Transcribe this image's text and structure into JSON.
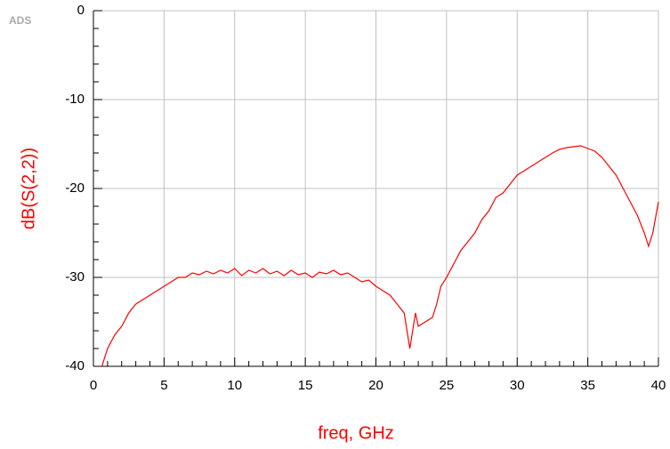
{
  "chart_data": {
    "type": "line",
    "watermark": "ADS",
    "xlabel": "freq, GHz",
    "ylabel": "dB(S(2,2))",
    "x": [
      0.6,
      1,
      1.5,
      2,
      2.5,
      3,
      3.5,
      4,
      4.5,
      5,
      5.5,
      6,
      6.5,
      7,
      7.5,
      8,
      8.5,
      9,
      9.5,
      10,
      10.5,
      11,
      11.5,
      12,
      12.5,
      13,
      13.5,
      14,
      14.5,
      15,
      15.5,
      16,
      16.5,
      17,
      17.5,
      18,
      18.5,
      19,
      19.5,
      20,
      20.5,
      21,
      21.5,
      22,
      22.4,
      22.8,
      23,
      23.5,
      24,
      24.3,
      24.6,
      25,
      25.5,
      26,
      26.5,
      27,
      27.5,
      28,
      28.5,
      29,
      29.5,
      30,
      30.5,
      31,
      31.5,
      32,
      32.5,
      33,
      33.5,
      34,
      34.5,
      35,
      35.5,
      36,
      36.5,
      37,
      37.5,
      38,
      38.5,
      39,
      39.3,
      39.6,
      40
    ],
    "series": [
      {
        "name": "dB(S(2,2))",
        "color": "#ff0000",
        "values": [
          -40,
          -38,
          -36.5,
          -35.5,
          -34,
          -33,
          -32.5,
          -32,
          -31.5,
          -31,
          -30.5,
          -30,
          -30,
          -29.5,
          -29.7,
          -29.3,
          -29.6,
          -29.2,
          -29.5,
          -29,
          -29.8,
          -29.2,
          -29.5,
          -29,
          -29.6,
          -29.3,
          -29.8,
          -29.2,
          -29.7,
          -29.5,
          -30,
          -29.4,
          -29.6,
          -29.2,
          -29.7,
          -29.5,
          -30,
          -30.5,
          -30.3,
          -31,
          -31.5,
          -32,
          -33,
          -34,
          -38,
          -34,
          -35.5,
          -35,
          -34.5,
          -33,
          -31,
          -30,
          -28.5,
          -27,
          -26,
          -25,
          -23.5,
          -22.5,
          -21,
          -20.5,
          -19.5,
          -18.5,
          -18,
          -17.5,
          -17,
          -16.5,
          -16,
          -15.6,
          -15.4,
          -15.3,
          -15.2,
          -15.5,
          -15.8,
          -16.5,
          -17.5,
          -18.5,
          -20,
          -21.5,
          -23,
          -25,
          -26.5,
          -25,
          -21.5
        ]
      }
    ],
    "xlim": [
      0,
      40
    ],
    "xticks": [
      0,
      5,
      10,
      15,
      20,
      25,
      30,
      35,
      40
    ],
    "ylim": [
      -40,
      0
    ],
    "yticks": [
      -40,
      -30,
      -20,
      -10,
      0
    ],
    "grid": true
  }
}
